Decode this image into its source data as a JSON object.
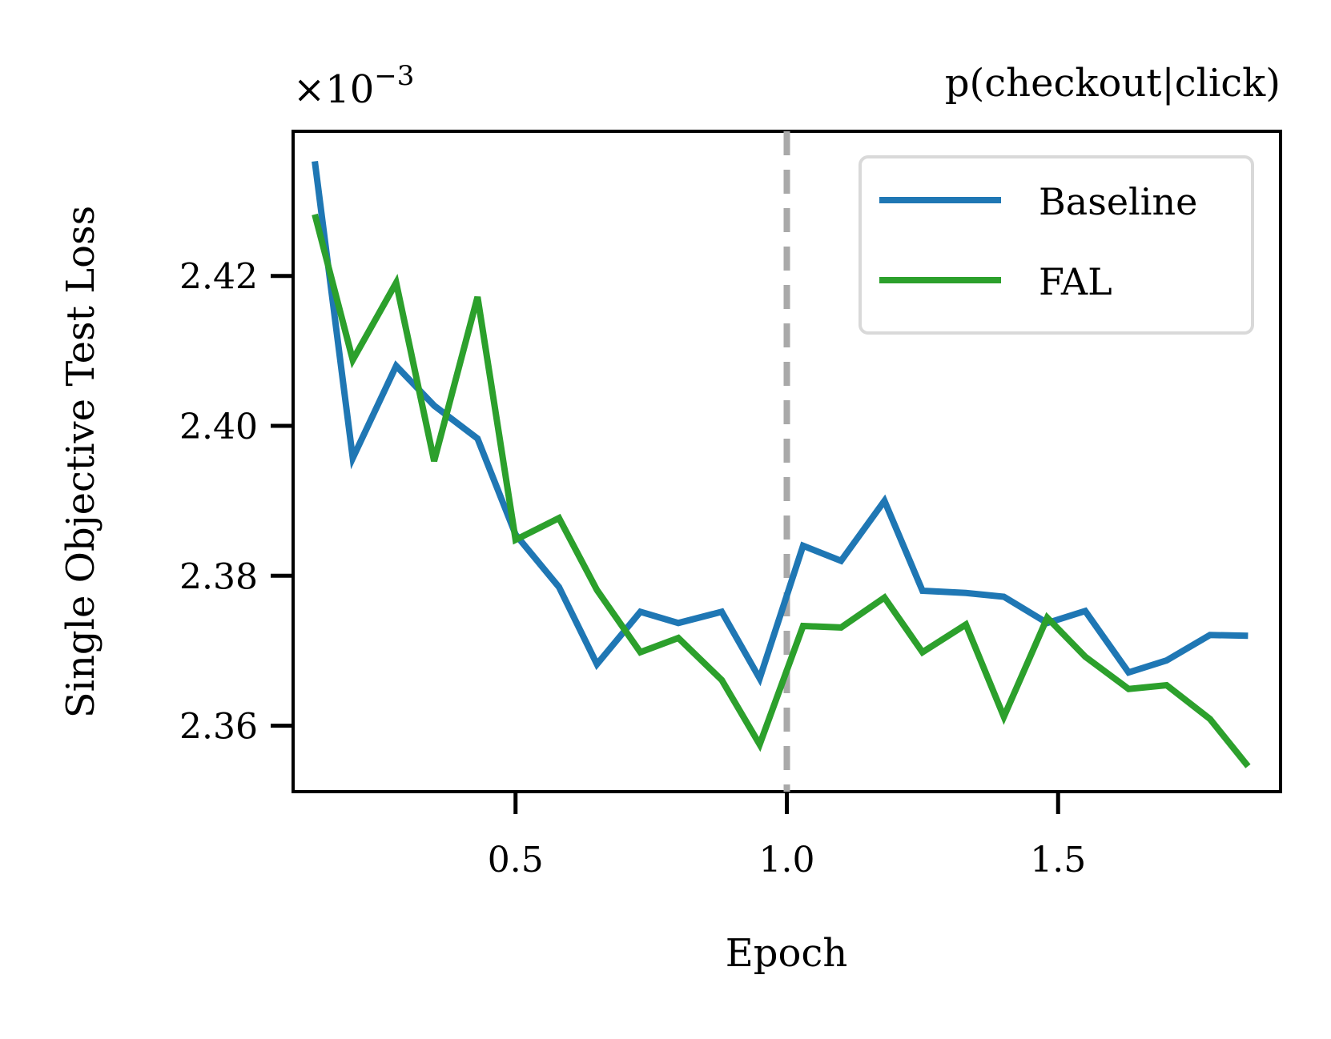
{
  "chart_data": {
    "type": "line",
    "title": "p(checkout|click)",
    "xlabel": "Epoch",
    "ylabel": "Single Objective Test Loss",
    "offset_text": "×10",
    "offset_exponent": "−3",
    "xlim": [
      0.09,
      1.91
    ],
    "ylim": [
      2.3512,
      2.4393
    ],
    "xticks": [
      0.5,
      1.0,
      1.5
    ],
    "xtick_labels": [
      "0.5",
      "1.0",
      "1.5"
    ],
    "yticks": [
      2.36,
      2.38,
      2.4,
      2.42
    ],
    "ytick_labels": [
      "2.36",
      "2.38",
      "2.40",
      "2.42"
    ],
    "grid": false,
    "legend_position": "upper right",
    "vline": {
      "x": 1.0,
      "color": "#a9a9a9",
      "style": "dashed"
    },
    "x": [
      0.13,
      0.2,
      0.28,
      0.35,
      0.43,
      0.5,
      0.58,
      0.65,
      0.73,
      0.8,
      0.88,
      0.95,
      1.03,
      1.1,
      1.18,
      1.25,
      1.33,
      1.4,
      1.48,
      1.55,
      1.63,
      1.7,
      1.78,
      1.85
    ],
    "series": [
      {
        "name": "Baseline",
        "color": "#1f77b4",
        "values": [
          2.4353,
          2.3957,
          2.408,
          2.4027,
          2.3983,
          2.3855,
          2.3785,
          2.3682,
          2.3752,
          2.3737,
          2.3752,
          2.3663,
          2.384,
          2.382,
          2.39,
          2.378,
          2.3777,
          2.3772,
          2.3737,
          2.3753,
          2.3671,
          2.3687,
          2.3721,
          2.372
        ]
      },
      {
        "name": "FAL",
        "color": "#2ca02c",
        "values": [
          2.4282,
          2.4088,
          2.4191,
          2.3953,
          2.4172,
          2.3848,
          2.3877,
          2.3781,
          2.3698,
          2.3717,
          2.3661,
          2.3575,
          2.3733,
          2.3731,
          2.3771,
          2.3698,
          2.3735,
          2.3612,
          2.3744,
          2.3692,
          2.3649,
          2.3654,
          2.3609,
          2.3546
        ]
      }
    ]
  }
}
